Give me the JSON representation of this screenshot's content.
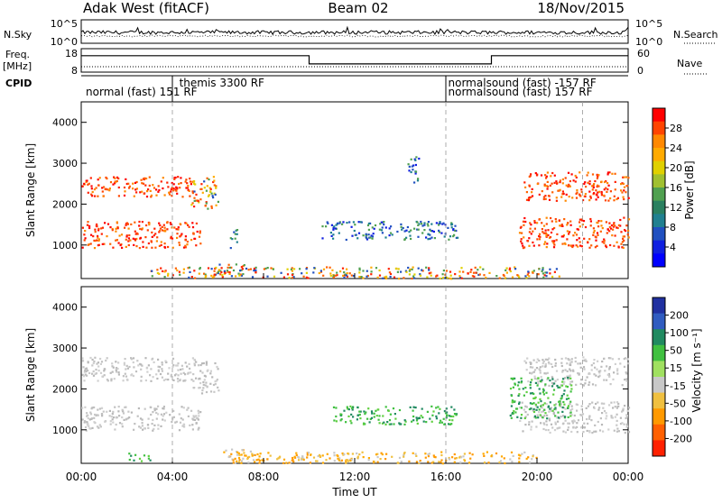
{
  "header": {
    "station": "Adak West (fitACF)",
    "beam": "Beam 02",
    "date": "18/Nov/2015"
  },
  "left_labels": {
    "nsky": "N.Sky",
    "freq_line1": "Freq.",
    "freq_line2": "[MHz]",
    "cpid": "CPID"
  },
  "right_labels": {
    "nsearch": "N.Search",
    "nave": "Nave"
  },
  "noise_panel": {
    "left_ticks": [
      "10^5",
      "10^0"
    ],
    "right_ticks": [
      "10^5",
      "10^0"
    ]
  },
  "freq_panel": {
    "left_ticks": [
      "18",
      "8"
    ],
    "right_ticks": [
      "60",
      "0"
    ]
  },
  "cpid_labels": [
    {
      "text": "normal (fast) 151 RF",
      "row": 1,
      "start_hour": 0.2
    },
    {
      "text": "themis 3300 RF",
      "row": 0,
      "start_hour": 4.3
    },
    {
      "text": "normalsound (fast) -157 RF",
      "row": 0,
      "start_hour": 16.1
    },
    {
      "text": "normalsound (fast) 157 RF",
      "row": 1,
      "start_hour": 16.1
    }
  ],
  "cpid_boundaries_hours": [
    4.0,
    16.0
  ],
  "power_colorbar": {
    "title": "Power [dB]",
    "ticks": [
      "28",
      "24",
      "20",
      "16",
      "12",
      "8",
      "4"
    ],
    "colors": [
      "#ff0000",
      "#ff4400",
      "#ff8800",
      "#ffaa00",
      "#e0d000",
      "#a0c030",
      "#50a050",
      "#2a8060",
      "#208090",
      "#2050c0",
      "#1020e0",
      "#0000ff"
    ]
  },
  "velocity_colorbar": {
    "title": "Velocity [m s⁻¹]",
    "ticks": [
      "200",
      "100",
      "50",
      "15",
      "-15",
      "-50",
      "-100",
      "-200"
    ],
    "colors": [
      "#2030a0",
      "#305cc0",
      "#208a60",
      "#40c040",
      "#a0e060",
      "#c8c8c8",
      "#f0c040",
      "#ff9900",
      "#ff6000",
      "#ff2000"
    ]
  },
  "x_axis": {
    "title": "Time UT",
    "ticks": [
      "00:00",
      "04:00",
      "08:00",
      "12:00",
      "16:00",
      "20:00",
      "00:00"
    ]
  },
  "y_axis": {
    "title": "Slant Range [km]",
    "ticks": [
      "4000",
      "3000",
      "2000",
      "1000"
    ]
  },
  "chart_data": {
    "type": "heatmap",
    "x_range_hours": [
      0,
      24
    ],
    "y_range_km": [
      180,
      4500
    ],
    "y_ticks_km": [
      1000,
      2000,
      3000,
      4000
    ],
    "power_scatter_regions": [
      {
        "t0": 0,
        "t1": 5.0,
        "r0": 2200,
        "r1": 2700,
        "color_group": "strong"
      },
      {
        "t0": 0,
        "t1": 5.2,
        "r0": 950,
        "r1": 1600,
        "color_group": "strong"
      },
      {
        "t0": 4.8,
        "t1": 6.0,
        "r0": 1900,
        "r1": 2700,
        "color_group": "mixed"
      },
      {
        "t0": 6.0,
        "t1": 7.4,
        "r0": 300,
        "r1": 550,
        "color_group": "mixed"
      },
      {
        "t0": 6.5,
        "t1": 6.9,
        "r0": 950,
        "r1": 1400,
        "color_group": "weak"
      },
      {
        "t0": 10.5,
        "t1": 16.5,
        "r0": 1150,
        "r1": 1600,
        "color_group": "weak"
      },
      {
        "t0": 14.3,
        "t1": 14.8,
        "r0": 2500,
        "r1": 3200,
        "color_group": "weak"
      },
      {
        "t0": 3.0,
        "t1": 21.0,
        "r0": 200,
        "r1": 480,
        "color_group": "mixed"
      },
      {
        "t0": 19.4,
        "t1": 24,
        "r0": 2100,
        "r1": 2800,
        "color_group": "strong"
      },
      {
        "t0": 19.2,
        "t1": 24,
        "r0": 950,
        "r1": 1700,
        "color_group": "strong"
      }
    ],
    "velocity_scatter_regions": [
      {
        "t0": 0,
        "t1": 5.0,
        "r0": 2200,
        "r1": 2800,
        "color_group": "gray"
      },
      {
        "t0": 0,
        "t1": 5.2,
        "r0": 1000,
        "r1": 1600,
        "color_group": "gray"
      },
      {
        "t0": 4.8,
        "t1": 6.0,
        "r0": 1900,
        "r1": 2700,
        "color_group": "gray"
      },
      {
        "t0": 6.2,
        "t1": 7.5,
        "r0": 250,
        "r1": 550,
        "color_group": "orange"
      },
      {
        "t0": 2.0,
        "t1": 3.0,
        "r0": 250,
        "r1": 450,
        "color_group": "green"
      },
      {
        "t0": 11.0,
        "t1": 16.5,
        "r0": 1150,
        "r1": 1600,
        "color_group": "green"
      },
      {
        "t0": 6.5,
        "t1": 20.0,
        "r0": 200,
        "r1": 480,
        "color_group": "orange"
      },
      {
        "t0": 19.4,
        "t1": 24,
        "r0": 2100,
        "r1": 2800,
        "color_group": "gray"
      },
      {
        "t0": 19.2,
        "t1": 24,
        "r0": 950,
        "r1": 1700,
        "color_group": "gray"
      },
      {
        "t0": 18.8,
        "t1": 21.5,
        "r0": 1300,
        "r1": 2300,
        "color_group": "green"
      }
    ],
    "freq_steps": [
      {
        "t0": 0,
        "t1": 10.0,
        "level": 0.7
      },
      {
        "t0": 10.0,
        "t1": 18.0,
        "level": 0.35
      },
      {
        "t0": 18.0,
        "t1": 24,
        "level": 0.7
      }
    ]
  }
}
